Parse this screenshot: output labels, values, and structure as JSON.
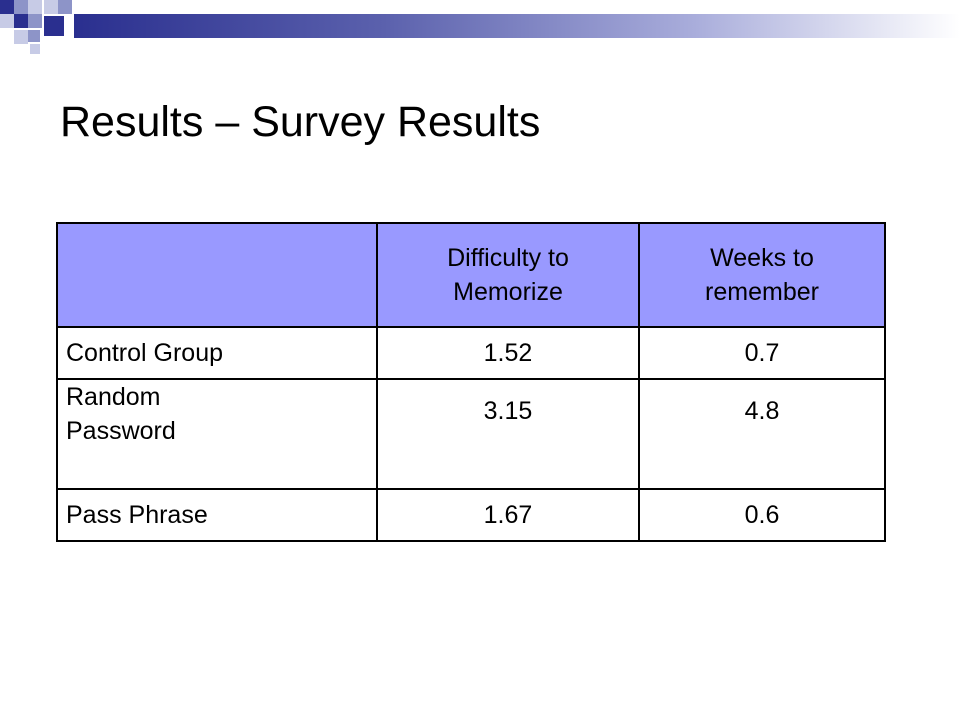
{
  "slide": {
    "title": "Results – Survey Results"
  },
  "table": {
    "header": {
      "blank": "",
      "difficulty": "Difficulty to Memorize",
      "weeks": "Weeks to remember"
    },
    "rows": [
      {
        "label": "Control Group",
        "difficulty": "1.52",
        "weeks": "0.7"
      },
      {
        "label": "Random Password",
        "difficulty": "3.15",
        "weeks": "4.8"
      },
      {
        "label": "Pass Phrase",
        "difficulty": "1.67",
        "weeks": "0.6"
      }
    ]
  },
  "colors": {
    "header_fill": "#9999ff",
    "deco_navy": "#2a2f8f"
  }
}
